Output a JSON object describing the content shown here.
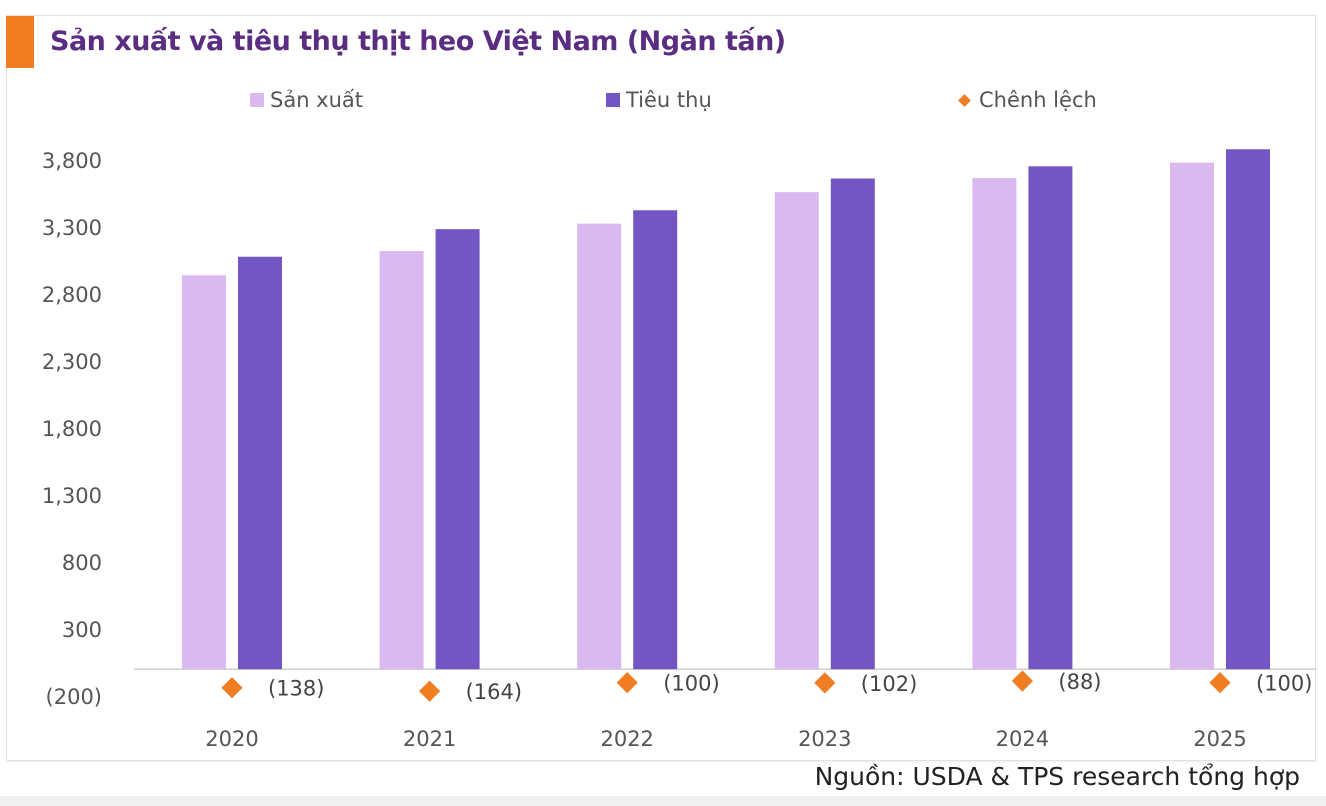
{
  "chart_data": {
    "type": "bar",
    "title": "Sản xuất và tiêu thụ thịt heo Việt Nam (Ngàn tấn)",
    "categories": [
      "2020",
      "2021",
      "2022",
      "2023",
      "2024",
      "2025"
    ],
    "series": [
      {
        "name": "Sản xuất",
        "kind": "bar",
        "color": "#dab8f0",
        "values": [
          2940,
          3120,
          3325,
          3560,
          3665,
          3780
        ]
      },
      {
        "name": "Tiêu thụ",
        "kind": "bar",
        "color": "#7156c4",
        "values": [
          3078,
          3284,
          3425,
          3662,
          3753,
          3880
        ]
      },
      {
        "name": "Chênh lệch",
        "kind": "marker",
        "color": "#f07d22",
        "values": [
          -138,
          -164,
          -100,
          -102,
          -88,
          -100
        ],
        "labels": [
          "(138)",
          "(164)",
          "(100)",
          "(102)",
          "(88)",
          "(100)"
        ]
      }
    ],
    "yticks": [
      3800,
      3300,
      2800,
      2300,
      1800,
      1300,
      800,
      300,
      -200
    ],
    "ytick_labels": [
      "3,800",
      "3,300",
      "2,800",
      "2,300",
      "1,800",
      "1,300",
      "800",
      "300",
      "(200)"
    ],
    "ylim": [
      -200,
      3800
    ],
    "grid": false,
    "legend_position": "top",
    "xlabel": "",
    "ylabel": ""
  },
  "source": "Nguồn: USDA & TPS research tổng hợp",
  "colors": {
    "accent": "#f07d22",
    "title": "#5b2d82"
  }
}
